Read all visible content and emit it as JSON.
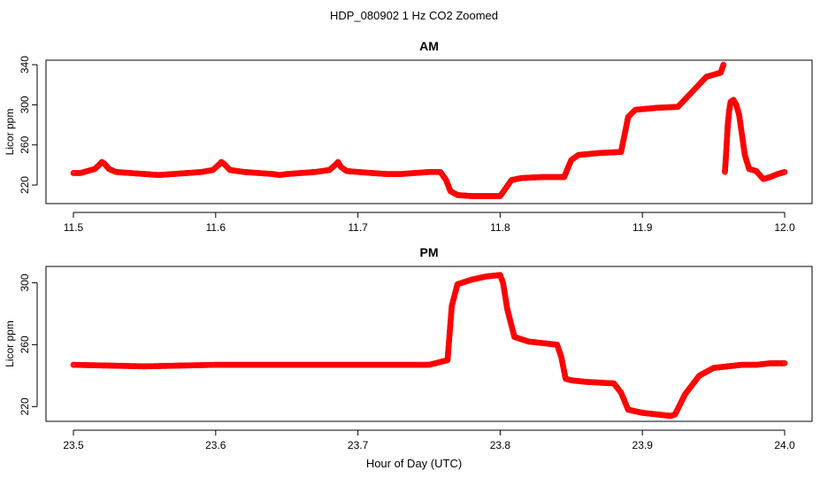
{
  "figure": {
    "title": "HDP_080902  1 Hz CO2 Zoomed",
    "xlabel": "Hour of Day (UTC)"
  },
  "colors": {
    "points": "#ff0000",
    "axes": "#000000",
    "background": "#ffffff"
  },
  "chart_data": [
    {
      "type": "scatter",
      "title": "AM",
      "xlabel": "",
      "ylabel": "Licor ppm",
      "xlim": [
        11.5,
        12.0
      ],
      "ylim": [
        201.5,
        344.5
      ],
      "xticks": [
        11.5,
        11.6,
        11.7,
        11.8,
        11.9,
        12.0
      ],
      "xtick_labels": [
        "11.5",
        "11.6",
        "11.7",
        "11.8",
        "11.9",
        "12.0"
      ],
      "yticks": [
        220,
        260,
        300,
        340
      ],
      "ytick_labels": [
        "220",
        "260",
        "300",
        "340"
      ],
      "grid": false,
      "marker": "open circle",
      "series": [
        {
          "x": [
            11.5,
            11.505,
            11.51,
            11.515,
            11.518,
            11.52,
            11.522,
            11.525,
            11.53,
            11.54,
            11.55,
            11.56,
            11.57,
            11.58,
            11.59,
            11.598,
            11.602,
            11.604,
            11.606,
            11.61,
            11.62,
            11.63,
            11.64,
            11.645,
            11.65,
            11.66,
            11.67,
            11.68,
            11.684,
            11.686,
            11.688,
            11.692,
            11.7,
            11.71,
            11.72,
            11.73,
            11.74,
            11.75,
            11.758,
            11.762,
            11.765,
            11.77,
            11.78,
            11.79,
            11.8,
            11.803,
            11.808,
            11.815,
            11.83,
            11.845,
            11.85,
            11.855,
            11.87,
            11.885,
            11.89,
            11.895,
            11.91,
            11.925,
            11.935,
            11.945,
            11.955,
            11.957,
            11.958,
            11.959,
            11.96,
            11.961,
            11.962,
            11.964,
            11.966,
            11.968,
            11.97,
            11.972,
            11.975,
            11.98,
            11.985,
            11.99,
            11.995,
            12.0
          ],
          "y": [
            232,
            232,
            234,
            236,
            240,
            243,
            241,
            236,
            233,
            232,
            231,
            230,
            231,
            232,
            233,
            235,
            240,
            243,
            241,
            235,
            233,
            232,
            231,
            230,
            231,
            232,
            233,
            235,
            240,
            243,
            238,
            234,
            233,
            232,
            231,
            231,
            232,
            233,
            233,
            225,
            214,
            210,
            209,
            209,
            209,
            215,
            225,
            227,
            228,
            228,
            245,
            250,
            252,
            253,
            288,
            295,
            297,
            298,
            313,
            328,
            332,
            340,
            233,
            255,
            280,
            294,
            303,
            305,
            300,
            290,
            270,
            250,
            236,
            234,
            226,
            228,
            231,
            233
          ]
        }
      ]
    },
    {
      "type": "scatter",
      "title": "PM",
      "xlabel": "",
      "ylabel": "Licor ppm",
      "xlim": [
        23.5,
        24.0
      ],
      "ylim": [
        210.5,
        310.5
      ],
      "xticks": [
        23.5,
        23.6,
        23.7,
        23.8,
        23.9,
        24.0
      ],
      "xtick_labels": [
        "23.5",
        "23.6",
        "23.7",
        "23.8",
        "23.9",
        "24.0"
      ],
      "yticks": [
        220,
        260,
        300
      ],
      "ytick_labels": [
        "220",
        "260",
        "300"
      ],
      "grid": false,
      "marker": "open circle",
      "series": [
        {
          "x": [
            23.5,
            23.55,
            23.6,
            23.65,
            23.7,
            23.75,
            23.763,
            23.766,
            23.77,
            23.78,
            23.79,
            23.8,
            23.802,
            23.805,
            23.81,
            23.82,
            23.84,
            23.843,
            23.846,
            23.85,
            23.86,
            23.88,
            23.885,
            23.89,
            23.9,
            23.91,
            23.92,
            23.923,
            23.93,
            23.94,
            23.95,
            23.96,
            23.97,
            23.98,
            23.99,
            24.0
          ],
          "y": [
            247,
            246,
            247,
            247,
            247,
            247,
            250,
            285,
            299,
            302,
            304,
            305,
            300,
            283,
            265,
            262,
            260,
            252,
            238,
            237,
            236,
            235,
            229,
            218,
            216,
            215,
            214,
            215,
            228,
            240,
            245,
            246,
            247,
            247,
            248,
            248
          ]
        }
      ]
    }
  ]
}
